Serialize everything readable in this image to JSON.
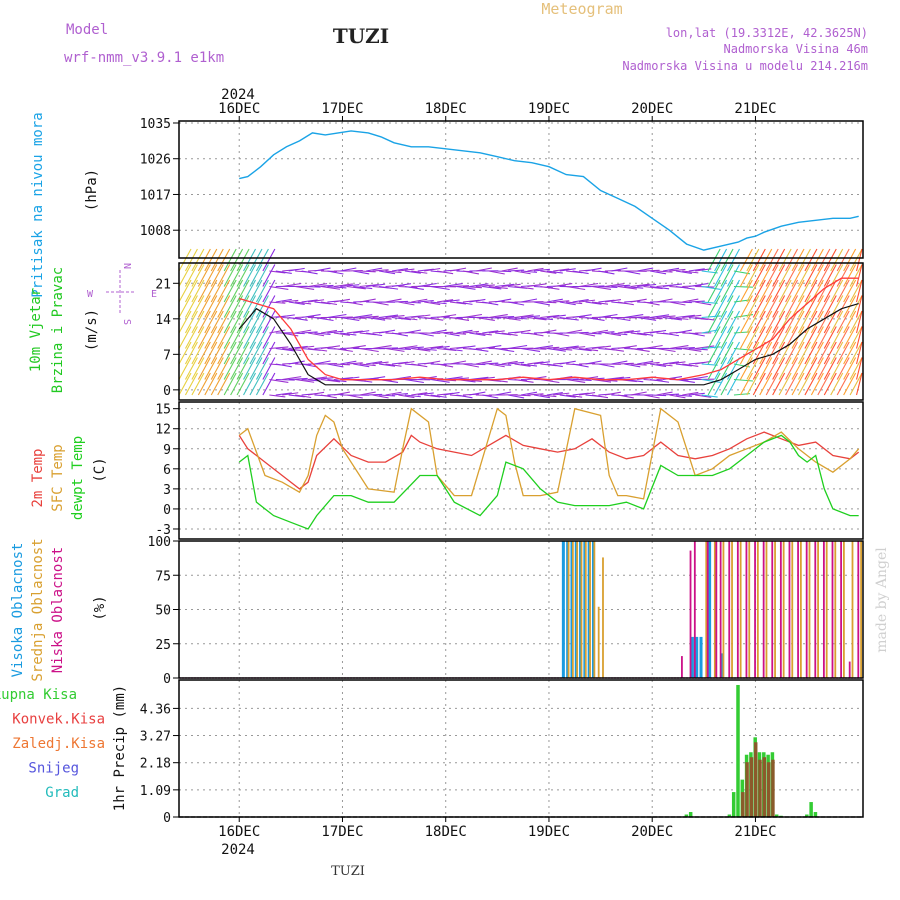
{
  "header": {
    "model_label": "Model",
    "model_name": "wrf-nmm_v3.9.1 e1km",
    "station": "TUZI",
    "meteogram": "Meteogram",
    "lonlat": "lon,lat (19.3312E, 42.3625N)",
    "elev": "Nadmorska Visina 46m",
    "elev_model": "Nadmorska Visina u modelu 214.216m",
    "year": "2024",
    "footer_station": "TUZI",
    "credit": "made by Angel"
  },
  "colors": {
    "pressure": "#1aa3e6",
    "wind_label": "#22c922",
    "wind_speed": "#ff3b3b",
    "wind_gust": "#111111",
    "t2m": "#e8413c",
    "tsfc": "#d9a030",
    "dewpt": "#1fcf1f",
    "cloud_high": "#1a9be0",
    "cloud_mid": "#d9a030",
    "cloud_low": "#cc1188",
    "rain_total": "#33cc33",
    "rain_conv": "#e84040",
    "freezing": "#ee7733",
    "snow": "#5555dd",
    "graupel": "#22bbbb",
    "grid": "#999999"
  },
  "chart_data": [
    {
      "type": "line",
      "panel": "pressure",
      "ylabel": [
        "Pritisak na nivou mora",
        "(hPa)"
      ],
      "yticks": [
        "1035",
        "1026",
        "1017",
        "1008"
      ],
      "ylim": [
        1001,
        1035.5
      ],
      "x_days": [
        "16DEC",
        "17DEC",
        "18DEC",
        "19DEC",
        "20DEC",
        "21DEC"
      ],
      "x_hours": [
        0,
        2,
        5,
        8,
        11,
        14,
        17,
        20,
        23,
        26,
        30,
        33,
        36,
        40,
        44,
        48,
        52,
        56,
        60,
        64,
        68,
        72,
        76,
        80,
        84,
        88,
        92,
        96,
        100,
        104,
        108,
        112,
        116,
        118,
        120,
        122,
        126,
        130,
        134,
        138,
        142,
        144
      ],
      "values": [
        1021,
        1021.5,
        1024,
        1027,
        1029,
        1030.5,
        1032.5,
        1032,
        1032.5,
        1033,
        1032.5,
        1031.5,
        1030,
        1029,
        1029,
        1028.5,
        1028,
        1027.5,
        1026.5,
        1025.5,
        1025,
        1024,
        1022,
        1021.5,
        1018,
        1016,
        1014,
        1011,
        1008,
        1004.5,
        1003,
        1004,
        1005,
        1006,
        1006.5,
        1007.5,
        1009,
        1010,
        1010.5,
        1011,
        1011,
        1011.5
      ]
    },
    {
      "type": "line",
      "panel": "wind",
      "ylabel": [
        "10m Vjetar",
        "Brzina i Pravac",
        "(m/s)"
      ],
      "compass": "N, W, E, S",
      "yticks": [
        "21",
        "14",
        "7",
        "0"
      ],
      "ylim": [
        -2,
        25
      ],
      "series": [
        {
          "x_hours": [
            0,
            4,
            8,
            12,
            16,
            20,
            24,
            30,
            36,
            42,
            48,
            54,
            60,
            66,
            72,
            78,
            84,
            90,
            96,
            102,
            108,
            112,
            116,
            118,
            120,
            124,
            128,
            132,
            136,
            140,
            144
          ],
          "values": [
            18,
            17,
            16,
            12,
            6,
            3,
            2,
            2,
            2,
            2.5,
            2,
            2,
            2,
            2.5,
            2,
            2.5,
            2,
            2,
            2.5,
            2,
            3,
            4,
            6,
            7,
            8,
            10,
            14,
            17,
            20,
            22,
            22
          ]
        },
        {
          "x_hours": [
            0,
            4,
            8,
            12,
            16,
            20,
            24,
            30,
            36,
            42,
            48,
            54,
            60,
            66,
            72,
            78,
            84,
            90,
            96,
            102,
            108,
            112,
            116,
            118,
            120,
            124,
            128,
            132,
            136,
            140,
            144
          ],
          "values": [
            12,
            16,
            14,
            9,
            3,
            1,
            1,
            1,
            1,
            1,
            1,
            1,
            1,
            1,
            1,
            1,
            1,
            1,
            1,
            1,
            1,
            2,
            4,
            5,
            6,
            7,
            9,
            12,
            14,
            16,
            17
          ]
        }
      ]
    },
    {
      "type": "line",
      "panel": "temperature",
      "ylabel": [
        "2m Temp",
        "SFC Temp",
        "dewpt Temp",
        "(C)"
      ],
      "yticks": [
        "15",
        "12",
        "9",
        "6",
        "3",
        "0",
        "-3"
      ],
      "ylim": [
        -4.5,
        16
      ],
      "series": [
        {
          "name": "2m Temp",
          "x_hours": [
            0,
            2,
            6,
            10,
            14,
            16,
            18,
            22,
            26,
            30,
            34,
            38,
            40,
            42,
            46,
            50,
            54,
            58,
            62,
            66,
            70,
            74,
            78,
            82,
            86,
            90,
            94,
            98,
            102,
            106,
            110,
            114,
            118,
            122,
            126,
            130,
            134,
            138,
            142,
            144
          ],
          "values": [
            11,
            9,
            7,
            5,
            3,
            4,
            8,
            10.5,
            8,
            7,
            7,
            8.5,
            11,
            10,
            9,
            8.5,
            8,
            9.5,
            11,
            9.5,
            9,
            8.5,
            9,
            10.5,
            8.5,
            7.5,
            8,
            10,
            8,
            7.5,
            8,
            9,
            10.5,
            11.5,
            10.5,
            9.5,
            10,
            8,
            7.5,
            8.5
          ]
        },
        {
          "name": "SFC Temp",
          "x_hours": [
            0,
            2,
            6,
            10,
            14,
            16,
            18,
            20,
            22,
            24,
            30,
            36,
            38,
            40,
            44,
            46,
            50,
            54,
            60,
            62,
            64,
            66,
            70,
            74,
            78,
            84,
            86,
            88,
            90,
            94,
            98,
            102,
            106,
            110,
            114,
            118,
            122,
            126,
            130,
            134,
            138,
            142,
            144
          ],
          "values": [
            11,
            12,
            5,
            4,
            2.5,
            5,
            11,
            14,
            13,
            9,
            3,
            2.5,
            9,
            15,
            13,
            5,
            2,
            2,
            15,
            14,
            7,
            2,
            2,
            2.5,
            15,
            14,
            5,
            2,
            2,
            1.5,
            15,
            13,
            5,
            6,
            8,
            9,
            10,
            11.5,
            9,
            7,
            5.5,
            7.5,
            9
          ]
        },
        {
          "name": "dewpt Temp",
          "x_hours": [
            0,
            2,
            4,
            8,
            12,
            16,
            18,
            22,
            26,
            30,
            36,
            42,
            46,
            50,
            56,
            60,
            62,
            66,
            70,
            74,
            78,
            82,
            86,
            90,
            94,
            98,
            102,
            106,
            110,
            114,
            118,
            122,
            126,
            128,
            130,
            132,
            134,
            136,
            138,
            142,
            144
          ],
          "values": [
            7,
            8,
            1,
            -1,
            -2,
            -3,
            -1,
            2,
            2,
            1,
            1,
            5,
            5,
            1,
            -1,
            2,
            7,
            6,
            3,
            1,
            0.5,
            0.5,
            0.5,
            1,
            0,
            6.5,
            5,
            5,
            5,
            6,
            8,
            10,
            11,
            10,
            8,
            7,
            8,
            3,
            0,
            -1,
            -1
          ]
        }
      ]
    },
    {
      "type": "bar",
      "panel": "cloud",
      "ylabel": [
        "Visoka Oblacnost",
        "Srednja Oblacnost",
        "Niska Oblacnost",
        "(%)"
      ],
      "yticks": [
        "100",
        "75",
        "50",
        "25",
        "0"
      ],
      "ylim": [
        0,
        100
      ],
      "series": [
        {
          "name": "Visoka Oblacnost",
          "x_hours": [
            75,
            76,
            77,
            78,
            79,
            80,
            81,
            82,
            105,
            106,
            107,
            109,
            112
          ],
          "values": [
            100,
            100,
            100,
            100,
            100,
            100,
            100,
            100,
            30,
            30,
            30,
            100,
            18
          ]
        },
        {
          "name": "Srednja Oblacnost",
          "x_hours": [
            76,
            77,
            78,
            79,
            80,
            81,
            82,
            83,
            84,
            108,
            110,
            112,
            114,
            116,
            118,
            120,
            122,
            124,
            126,
            128,
            130,
            132,
            134,
            136,
            138,
            140,
            142,
            144
          ],
          "values": [
            100,
            100,
            100,
            100,
            100,
            100,
            100,
            52,
            88,
            100,
            100,
            100,
            100,
            100,
            100,
            100,
            100,
            100,
            100,
            100,
            100,
            100,
            100,
            100,
            100,
            100,
            100,
            100
          ]
        },
        {
          "name": "Niska Oblacnost",
          "x_hours": [
            102,
            104,
            105,
            108,
            110,
            111,
            113,
            115,
            117,
            119,
            121,
            123,
            125,
            127,
            129,
            131,
            133,
            135,
            137,
            139,
            141,
            143
          ],
          "values": [
            16,
            93,
            100,
            100,
            100,
            100,
            100,
            100,
            100,
            100,
            100,
            100,
            100,
            100,
            100,
            100,
            100,
            100,
            100,
            100,
            12,
            100
          ]
        }
      ]
    },
    {
      "type": "bar",
      "panel": "precip",
      "ylabel": [
        "1hr Precip (mm)"
      ],
      "legend": [
        "Ukupna Kisa",
        "Konvek.Kisa",
        "Zaledj.Kisa",
        "Snijeg",
        "Grad"
      ],
      "yticks": [
        "4.36",
        "3.27",
        "2.18",
        "1.09",
        "0"
      ],
      "ylim": [
        0,
        5.5
      ],
      "series": [
        {
          "name": "Ukupna Kisa",
          "x_hours": [
            104,
            105,
            114,
            115,
            116,
            117,
            118,
            119,
            120,
            121,
            122,
            123,
            124,
            125,
            126,
            132,
            133,
            134
          ],
          "values": [
            0.1,
            0.2,
            0.1,
            1.0,
            5.3,
            1.5,
            2.5,
            2.6,
            3.2,
            2.6,
            2.6,
            2.5,
            2.6,
            0.1,
            0.05,
            0.1,
            0.6,
            0.2
          ]
        },
        {
          "name": "Konvek.Kisa",
          "x_hours": [
            117,
            118,
            119,
            120,
            121,
            122,
            123,
            124
          ],
          "values": [
            1.0,
            2.2,
            2.4,
            3.0,
            2.3,
            2.4,
            2.2,
            2.3
          ]
        }
      ],
      "x_days": [
        "16DEC",
        "17DEC",
        "18DEC",
        "19DEC",
        "20DEC",
        "21DEC"
      ],
      "xlabel_year": "2024"
    }
  ]
}
